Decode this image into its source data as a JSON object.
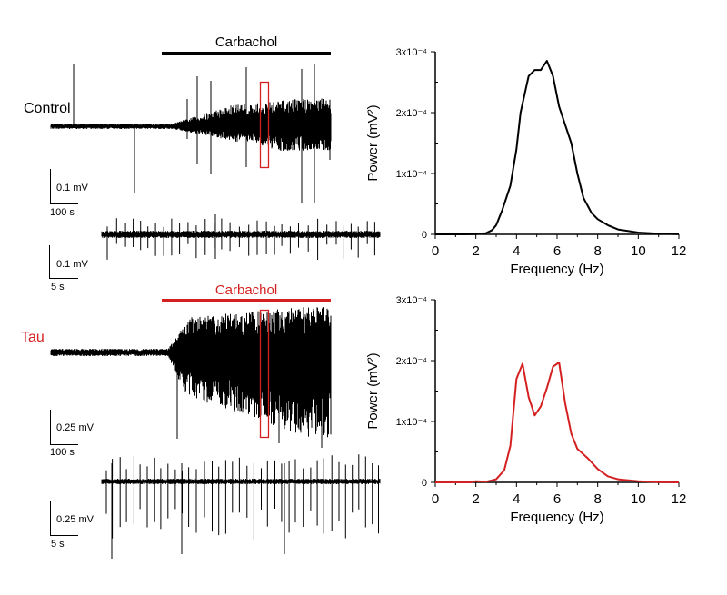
{
  "colors": {
    "control": "#000000",
    "tau": "#d42020"
  },
  "traces": {
    "control": {
      "label": "Control",
      "drug_label": "Carbachol",
      "scale_long": {
        "amplitude": "0.1 mV",
        "time": "100 s"
      },
      "scale_zoom": {
        "amplitude": "0.1 mV",
        "time": "5 s"
      }
    },
    "tau": {
      "label": "Tau",
      "drug_label": "Carbachol",
      "scale_long": {
        "amplitude": "0.25 mV",
        "time": "100 s"
      },
      "scale_zoom": {
        "amplitude": "0.25 mV",
        "time": "5 s"
      }
    }
  },
  "chart_data": [
    {
      "type": "line",
      "xlabel": "Frequency (Hz)",
      "ylabel": "Power (mV²)",
      "xlim": [
        0,
        12
      ],
      "ylim": [
        0,
        0.0003
      ],
      "xticks": [
        "0",
        "2",
        "4",
        "6",
        "8",
        "10",
        "12"
      ],
      "yticks": [
        "0",
        "1x10⁻⁴",
        "2x10⁻⁴",
        "3x10⁻⁴"
      ],
      "grid": false,
      "color": "#000000",
      "x": [
        1.0,
        2.0,
        2.5,
        2.8,
        3.0,
        3.3,
        3.7,
        4.0,
        4.2,
        4.6,
        4.9,
        5.2,
        5.5,
        5.8,
        6.1,
        6.4,
        6.7,
        7.0,
        7.3,
        7.7,
        8.0,
        8.5,
        9.0,
        10.0,
        11.0,
        12.0
      ],
      "y": [
        0,
        3e-07,
        2e-06,
        7e-06,
        1.5e-05,
        4e-05,
        8e-05,
        0.00014,
        0.0002,
        0.00026,
        0.00027,
        0.00027,
        0.000285,
        0.00026,
        0.00021,
        0.00018,
        0.00015,
        0.0001,
        6e-05,
        3.5e-05,
        2.5e-05,
        1.5e-05,
        8e-06,
        3e-06,
        1e-06,
        5e-07
      ]
    },
    {
      "type": "line",
      "xlabel": "Frequency (Hz)",
      "ylabel": "Power (mV²)",
      "xlim": [
        0,
        12
      ],
      "ylim": [
        0,
        0.0003
      ],
      "xticks": [
        "0",
        "2",
        "4",
        "6",
        "8",
        "10",
        "12"
      ],
      "yticks": [
        "0",
        "1x10⁻⁴",
        "2x10⁻⁴",
        "3x10⁻⁴"
      ],
      "grid": false,
      "color": "#d42020",
      "x": [
        1.7,
        2.0,
        2.5,
        3.0,
        3.4,
        3.7,
        4.0,
        4.3,
        4.6,
        4.9,
        5.2,
        5.5,
        5.8,
        6.1,
        6.4,
        6.7,
        7.0,
        7.5,
        8.0,
        8.5,
        9.0,
        10.0,
        11.0,
        12.0
      ],
      "y": [
        0,
        2e-06,
        1e-06,
        5e-06,
        2e-05,
        6e-05,
        0.00017,
        0.000195,
        0.00014,
        0.00011,
        0.000125,
        0.000155,
        0.00019,
        0.000197,
        0.00013,
        8e-05,
        5.5e-05,
        4e-05,
        2.2e-05,
        1e-05,
        5e-06,
        2e-06,
        5e-07,
        0
      ]
    }
  ]
}
